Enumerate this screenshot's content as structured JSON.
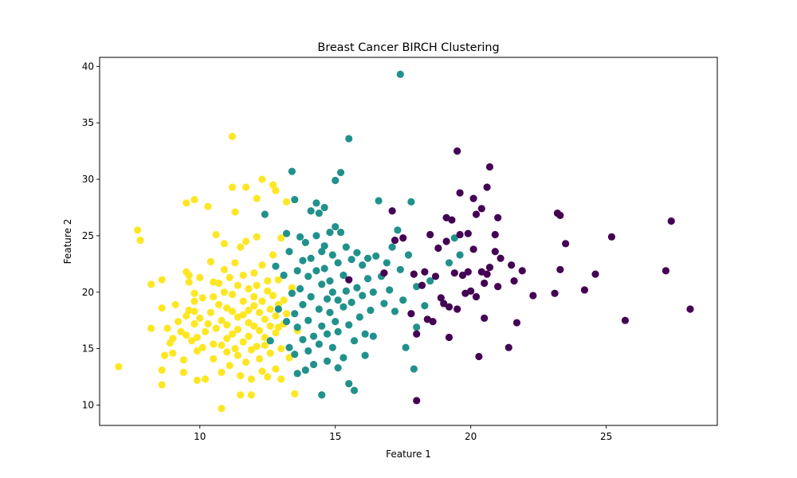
{
  "chart_data": {
    "type": "scatter",
    "title": "Breast Cancer BIRCH Clustering",
    "xlabel": "Feature 1",
    "ylabel": "Feature 2",
    "xlim": [
      6.3,
      29.1
    ],
    "ylim": [
      8.2,
      40.8
    ],
    "xticks": [
      10,
      15,
      20,
      25
    ],
    "yticks": [
      10,
      15,
      20,
      25,
      30,
      35,
      40
    ],
    "grid": false,
    "legend": "none",
    "colors": {
      "cluster_0": "#440154",
      "cluster_1": "#21918c",
      "cluster_2": "#fde725"
    },
    "series": [
      {
        "name": "cluster_2",
        "color": "#fde725",
        "points": [
          [
            7.0,
            13.4
          ],
          [
            7.7,
            25.5
          ],
          [
            7.8,
            24.6
          ],
          [
            8.2,
            20.7
          ],
          [
            8.2,
            16.8
          ],
          [
            8.6,
            21.1
          ],
          [
            8.6,
            18.6
          ],
          [
            8.6,
            13.1
          ],
          [
            8.6,
            11.8
          ],
          [
            8.7,
            14.4
          ],
          [
            8.8,
            16.8
          ],
          [
            8.9,
            15.5
          ],
          [
            9.0,
            15.9
          ],
          [
            9.0,
            14.6
          ],
          [
            9.1,
            18.9
          ],
          [
            9.2,
            17.4
          ],
          [
            9.3,
            16.5
          ],
          [
            9.4,
            14.0
          ],
          [
            9.4,
            12.9
          ],
          [
            9.5,
            21.8
          ],
          [
            9.5,
            17.9
          ],
          [
            9.5,
            16.2
          ],
          [
            9.5,
            27.9
          ],
          [
            9.6,
            21.5
          ],
          [
            9.6,
            20.9
          ],
          [
            9.6,
            18.4
          ],
          [
            9.7,
            15.7
          ],
          [
            9.8,
            28.2
          ],
          [
            9.8,
            19.9
          ],
          [
            9.8,
            19.2
          ],
          [
            9.8,
            18.3
          ],
          [
            9.8,
            17.2
          ],
          [
            9.9,
            16.0
          ],
          [
            9.9,
            14.8
          ],
          [
            9.9,
            12.2
          ],
          [
            10.0,
            21.3
          ],
          [
            10.0,
            17.7
          ],
          [
            10.1,
            19.5
          ],
          [
            10.1,
            15.1
          ],
          [
            10.2,
            12.3
          ],
          [
            10.2,
            16.5
          ],
          [
            10.3,
            17.2
          ],
          [
            10.3,
            27.6
          ],
          [
            10.4,
            22.7
          ],
          [
            10.4,
            18.2
          ],
          [
            10.5,
            15.4
          ],
          [
            10.5,
            14.1
          ],
          [
            10.5,
            20.9
          ],
          [
            10.5,
            19.6
          ],
          [
            10.6,
            16.8
          ],
          [
            10.6,
            25.1
          ],
          [
            10.7,
            20.8
          ],
          [
            10.7,
            18.9
          ],
          [
            10.8,
            17.5
          ],
          [
            10.8,
            15.3
          ],
          [
            10.8,
            12.9
          ],
          [
            10.8,
            9.7
          ],
          [
            10.9,
            24.3
          ],
          [
            10.9,
            22.0
          ],
          [
            10.9,
            20.0
          ],
          [
            11.0,
            18.6
          ],
          [
            11.0,
            17.1
          ],
          [
            11.0,
            15.9
          ],
          [
            11.0,
            14.7
          ],
          [
            11.1,
            13.5
          ],
          [
            11.1,
            21.3
          ],
          [
            11.2,
            33.8
          ],
          [
            11.2,
            29.3
          ],
          [
            11.2,
            19.8
          ],
          [
            11.2,
            18.3
          ],
          [
            11.2,
            16.3
          ],
          [
            11.3,
            15.0
          ],
          [
            11.3,
            27.1
          ],
          [
            11.3,
            22.6
          ],
          [
            11.4,
            20.6
          ],
          [
            11.4,
            17.8
          ],
          [
            11.4,
            16.7
          ],
          [
            11.4,
            14.4
          ],
          [
            11.5,
            12.6
          ],
          [
            11.5,
            10.9
          ],
          [
            11.5,
            24.0
          ],
          [
            11.6,
            21.5
          ],
          [
            11.6,
            19.2
          ],
          [
            11.6,
            18.0
          ],
          [
            11.6,
            15.6
          ],
          [
            11.7,
            13.8
          ],
          [
            11.7,
            29.3
          ],
          [
            11.7,
            24.5
          ],
          [
            11.8,
            20.3
          ],
          [
            11.8,
            18.4
          ],
          [
            11.8,
            17.3
          ],
          [
            11.8,
            16.1
          ],
          [
            11.9,
            14.9
          ],
          [
            11.9,
            12.3
          ],
          [
            11.9,
            10.9
          ],
          [
            12.0,
            21.7
          ],
          [
            12.0,
            19.6
          ],
          [
            12.0,
            18.8
          ],
          [
            12.0,
            17.0
          ],
          [
            12.1,
            15.2
          ],
          [
            12.1,
            24.9
          ],
          [
            12.1,
            28.3
          ],
          [
            12.1,
            20.6
          ],
          [
            12.2,
            18.2
          ],
          [
            12.2,
            16.6
          ],
          [
            12.2,
            14.1
          ],
          [
            12.3,
            13.0
          ],
          [
            12.3,
            30.0
          ],
          [
            12.3,
            22.4
          ],
          [
            12.3,
            19.2
          ],
          [
            12.4,
            17.6
          ],
          [
            12.4,
            16.0
          ],
          [
            12.4,
            15.3
          ],
          [
            12.5,
            12.5
          ],
          [
            12.5,
            21.0
          ],
          [
            12.5,
            20.1
          ],
          [
            12.6,
            18.5
          ],
          [
            12.6,
            17.0
          ],
          [
            12.6,
            14.6
          ],
          [
            12.7,
            29.5
          ],
          [
            12.7,
            23.3
          ],
          [
            12.7,
            19.7
          ],
          [
            12.8,
            17.9
          ],
          [
            12.8,
            16.4
          ],
          [
            12.8,
            13.2
          ],
          [
            12.8,
            29.0
          ],
          [
            12.9,
            21.1
          ],
          [
            12.9,
            18.9
          ],
          [
            12.9,
            16.9
          ],
          [
            13.0,
            15.0
          ],
          [
            13.0,
            12.3
          ],
          [
            13.0,
            24.8
          ],
          [
            13.1,
            19.3
          ],
          [
            13.1,
            17.2
          ],
          [
            13.2,
            28.0
          ],
          [
            13.2,
            18.1
          ],
          [
            13.3,
            14.2
          ],
          [
            13.4,
            20.4
          ],
          [
            13.5,
            11.0
          ],
          [
            13.6,
            16.6
          ]
        ]
      },
      {
        "name": "cluster_1",
        "color": "#21918c",
        "points": [
          [
            12.4,
            26.9
          ],
          [
            12.6,
            15.7
          ],
          [
            12.8,
            22.3
          ],
          [
            12.9,
            18.5
          ],
          [
            13.1,
            21.5
          ],
          [
            13.2,
            25.2
          ],
          [
            13.2,
            17.4
          ],
          [
            13.3,
            15.1
          ],
          [
            13.3,
            23.6
          ],
          [
            13.4,
            30.7
          ],
          [
            13.4,
            19.9
          ],
          [
            13.5,
            28.2
          ],
          [
            13.5,
            18.1
          ],
          [
            13.5,
            14.5
          ],
          [
            13.6,
            21.9
          ],
          [
            13.6,
            16.9
          ],
          [
            13.6,
            12.8
          ],
          [
            13.7,
            24.9
          ],
          [
            13.7,
            20.3
          ],
          [
            13.8,
            22.8
          ],
          [
            13.8,
            18.9
          ],
          [
            13.8,
            15.8
          ],
          [
            13.9,
            13.1
          ],
          [
            13.9,
            24.4
          ],
          [
            14.0,
            21.4
          ],
          [
            14.0,
            17.5
          ],
          [
            14.0,
            14.8
          ],
          [
            14.1,
            27.2
          ],
          [
            14.1,
            23.0
          ],
          [
            14.1,
            19.6
          ],
          [
            14.2,
            16.1
          ],
          [
            14.2,
            13.6
          ],
          [
            14.3,
            27.9
          ],
          [
            14.3,
            25.0
          ],
          [
            14.3,
            21.9
          ],
          [
            14.4,
            18.5
          ],
          [
            14.4,
            15.4
          ],
          [
            14.4,
            27.0
          ],
          [
            14.5,
            23.6
          ],
          [
            14.5,
            20.7
          ],
          [
            14.5,
            17.0
          ],
          [
            14.5,
            10.9
          ],
          [
            14.6,
            27.5
          ],
          [
            14.6,
            24.1
          ],
          [
            14.6,
            22.1
          ],
          [
            14.7,
            19.4
          ],
          [
            14.7,
            16.3
          ],
          [
            14.7,
            13.9
          ],
          [
            14.8,
            25.3
          ],
          [
            14.8,
            21.0
          ],
          [
            14.8,
            18.2
          ],
          [
            14.9,
            15.1
          ],
          [
            14.9,
            23.3
          ],
          [
            14.9,
            20.0
          ],
          [
            15.0,
            17.4
          ],
          [
            15.0,
            25.8
          ],
          [
            15.0,
            29.9
          ],
          [
            15.1,
            22.6
          ],
          [
            15.1,
            19.3
          ],
          [
            15.1,
            16.5
          ],
          [
            15.1,
            13.3
          ],
          [
            15.2,
            30.6
          ],
          [
            15.2,
            25.3
          ],
          [
            15.3,
            21.5
          ],
          [
            15.3,
            18.7
          ],
          [
            15.3,
            14.2
          ],
          [
            15.4,
            24.0
          ],
          [
            15.4,
            20.1
          ],
          [
            15.5,
            33.6
          ],
          [
            15.5,
            17.1
          ],
          [
            15.5,
            11.9
          ],
          [
            15.6,
            22.9
          ],
          [
            15.6,
            19.1
          ],
          [
            15.7,
            15.7
          ],
          [
            15.7,
            11.3
          ],
          [
            15.8,
            23.5
          ],
          [
            15.8,
            20.4
          ],
          [
            15.9,
            17.8
          ],
          [
            16.0,
            22.4
          ],
          [
            16.0,
            19.7
          ],
          [
            16.1,
            16.3
          ],
          [
            16.1,
            14.4
          ],
          [
            16.2,
            23.0
          ],
          [
            16.2,
            21.2
          ],
          [
            16.3,
            18.4
          ],
          [
            16.4,
            20.0
          ],
          [
            16.4,
            16.1
          ],
          [
            16.5,
            23.2
          ],
          [
            16.6,
            28.1
          ],
          [
            16.7,
            21.4
          ],
          [
            16.8,
            19.0
          ],
          [
            16.9,
            22.6
          ],
          [
            17.0,
            20.2
          ],
          [
            17.1,
            24.0
          ],
          [
            17.2,
            18.3
          ],
          [
            17.3,
            25.5
          ],
          [
            17.4,
            22.0
          ],
          [
            17.4,
            39.3
          ],
          [
            17.5,
            19.3
          ],
          [
            17.6,
            15.1
          ],
          [
            17.7,
            23.3
          ],
          [
            17.8,
            28.0
          ],
          [
            17.9,
            13.2
          ],
          [
            18.0,
            20.5
          ],
          [
            18.0,
            16.9
          ],
          [
            18.3,
            18.8
          ],
          [
            18.5,
            21.0
          ],
          [
            19.2,
            22.6
          ],
          [
            19.4,
            24.8
          ],
          [
            19.6,
            23.3
          ]
        ]
      },
      {
        "name": "cluster_0",
        "color": "#440154",
        "points": [
          [
            15.5,
            21.1
          ],
          [
            16.8,
            21.7
          ],
          [
            17.1,
            27.2
          ],
          [
            17.2,
            24.6
          ],
          [
            17.5,
            24.8
          ],
          [
            17.8,
            18.1
          ],
          [
            17.9,
            21.6
          ],
          [
            18.0,
            10.4
          ],
          [
            18.0,
            16.3
          ],
          [
            18.2,
            20.6
          ],
          [
            18.3,
            21.8
          ],
          [
            18.4,
            17.6
          ],
          [
            18.5,
            25.1
          ],
          [
            18.6,
            17.4
          ],
          [
            18.7,
            21.4
          ],
          [
            18.8,
            23.9
          ],
          [
            18.9,
            19.5
          ],
          [
            19.0,
            19.0
          ],
          [
            19.1,
            24.5
          ],
          [
            19.1,
            26.6
          ],
          [
            19.2,
            16.0
          ],
          [
            19.2,
            18.7
          ],
          [
            19.3,
            26.4
          ],
          [
            19.4,
            21.7
          ],
          [
            19.5,
            18.5
          ],
          [
            19.5,
            32.5
          ],
          [
            19.6,
            28.8
          ],
          [
            19.6,
            25.1
          ],
          [
            19.7,
            21.5
          ],
          [
            19.8,
            19.9
          ],
          [
            19.9,
            21.8
          ],
          [
            19.9,
            25.2
          ],
          [
            20.0,
            20.1
          ],
          [
            20.1,
            28.3
          ],
          [
            20.1,
            23.8
          ],
          [
            20.2,
            19.6
          ],
          [
            20.2,
            26.9
          ],
          [
            20.3,
            14.3
          ],
          [
            20.4,
            21.8
          ],
          [
            20.4,
            27.4
          ],
          [
            20.5,
            20.8
          ],
          [
            20.5,
            17.7
          ],
          [
            20.6,
            21.6
          ],
          [
            20.6,
            29.3
          ],
          [
            20.7,
            22.2
          ],
          [
            20.7,
            31.1
          ],
          [
            20.9,
            25.1
          ],
          [
            20.9,
            23.6
          ],
          [
            21.0,
            20.5
          ],
          [
            21.0,
            26.6
          ],
          [
            21.1,
            23.0
          ],
          [
            21.4,
            15.1
          ],
          [
            21.5,
            22.4
          ],
          [
            21.6,
            21.0
          ],
          [
            21.7,
            17.3
          ],
          [
            21.9,
            21.9
          ],
          [
            22.3,
            19.7
          ],
          [
            23.1,
            19.9
          ],
          [
            23.2,
            27.0
          ],
          [
            23.3,
            26.8
          ],
          [
            23.3,
            22.0
          ],
          [
            23.5,
            24.3
          ],
          [
            24.2,
            20.2
          ],
          [
            24.6,
            21.6
          ],
          [
            25.2,
            24.9
          ],
          [
            25.7,
            17.5
          ],
          [
            27.2,
            21.9
          ],
          [
            27.4,
            26.3
          ],
          [
            28.1,
            18.5
          ]
        ]
      }
    ]
  }
}
